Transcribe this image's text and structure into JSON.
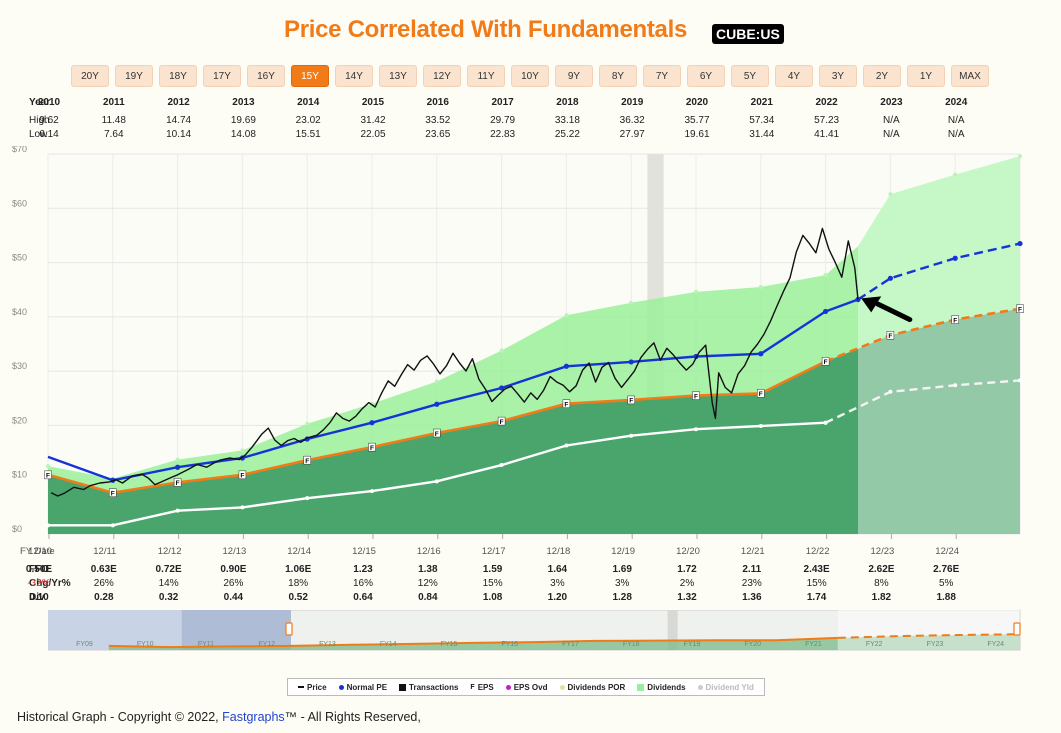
{
  "header": {
    "title": "Price Correlated With Fundamentals",
    "ticker": "CUBE:US"
  },
  "ranges": {
    "buttons": [
      "20Y",
      "19Y",
      "18Y",
      "17Y",
      "16Y",
      "15Y",
      "14Y",
      "13Y",
      "12Y",
      "11Y",
      "10Y",
      "9Y",
      "8Y",
      "7Y",
      "6Y",
      "5Y",
      "4Y",
      "3Y",
      "2Y",
      "1Y",
      "MAX"
    ],
    "active": "15Y"
  },
  "high_low": {
    "year_label": "Year",
    "high_label": "High",
    "low_label": "Low",
    "years": [
      "2010",
      "2011",
      "2012",
      "2013",
      "2014",
      "2015",
      "2016",
      "2017",
      "2018",
      "2019",
      "2020",
      "2021",
      "2022",
      "2023",
      "2024"
    ],
    "high": [
      "9.62",
      "11.48",
      "14.74",
      "19.69",
      "23.02",
      "31.42",
      "33.52",
      "29.79",
      "33.18",
      "36.32",
      "35.77",
      "57.34",
      "57.23",
      "N/A",
      "N/A"
    ],
    "low": [
      "6.14",
      "7.64",
      "10.14",
      "14.08",
      "15.51",
      "22.05",
      "23.65",
      "22.83",
      "25.22",
      "27.97",
      "19.61",
      "31.44",
      "41.41",
      "N/A",
      "N/A"
    ]
  },
  "fundamentals": {
    "fy_label": "FY Date",
    "ffo_label": "FFO",
    "chg_label": "Chg/Yr%",
    "div_label": "Div",
    "fy_dates": [
      "12/10",
      "12/11",
      "12/12",
      "12/13",
      "12/14",
      "12/15",
      "12/16",
      "12/17",
      "12/18",
      "12/19",
      "12/20",
      "12/21",
      "12/22",
      "12/23",
      "12/24"
    ],
    "ffo": [
      "0.50E",
      "0.63E",
      "0.72E",
      "0.90E",
      "1.06E",
      "1.23",
      "1.38",
      "1.59",
      "1.64",
      "1.69",
      "1.72",
      "2.11",
      "2.43E",
      "2.62E",
      "2.76E"
    ],
    "chg": [
      "-32%",
      "26%",
      "14%",
      "26%",
      "18%",
      "16%",
      "12%",
      "15%",
      "3%",
      "3%",
      "2%",
      "23%",
      "15%",
      "8%",
      "5%"
    ],
    "div": [
      "0.10",
      "0.28",
      "0.32",
      "0.44",
      "0.52",
      "0.64",
      "0.84",
      "1.08",
      "1.20",
      "1.28",
      "1.32",
      "1.36",
      "1.74",
      "1.82",
      "1.88"
    ]
  },
  "chart_data": {
    "type": "line",
    "title": "Price Correlated With Fundamentals",
    "y_axis": {
      "min": 0,
      "max": 70,
      "ticks": [
        "$0",
        "$10",
        "$20",
        "$30",
        "$40",
        "$50",
        "$60",
        "$70"
      ]
    },
    "x_ticks": [
      "12/10",
      "12/11",
      "12/12",
      "12/13",
      "12/14",
      "12/15",
      "12/16",
      "12/17",
      "12/18",
      "12/19",
      "12/20",
      "12/21",
      "12/22",
      "12/23",
      "12/24"
    ],
    "x_range": [
      2009.95,
      2024.95
    ],
    "eps_marker": "F",
    "recession_shade": [
      2019.2,
      2019.45
    ],
    "series": [
      {
        "name": "Price",
        "color": "#111111",
        "points": [
          [
            2010.0,
            7.6
          ],
          [
            2010.1,
            7.0
          ],
          [
            2010.2,
            7.5
          ],
          [
            2010.35,
            8.6
          ],
          [
            2010.5,
            8.2
          ],
          [
            2010.6,
            8.9
          ],
          [
            2010.75,
            9.4
          ],
          [
            2010.9,
            9.6
          ],
          [
            2011.0,
            10.0
          ],
          [
            2011.1,
            9.4
          ],
          [
            2011.25,
            10.7
          ],
          [
            2011.4,
            11.0
          ],
          [
            2011.5,
            10.3
          ],
          [
            2011.6,
            9.1
          ],
          [
            2011.7,
            9.6
          ],
          [
            2011.85,
            10.4
          ],
          [
            2011.95,
            10.9
          ],
          [
            2012.1,
            11.8
          ],
          [
            2012.25,
            12.8
          ],
          [
            2012.4,
            12.3
          ],
          [
            2012.5,
            13.0
          ],
          [
            2012.6,
            13.6
          ],
          [
            2012.75,
            14.0
          ],
          [
            2012.9,
            13.7
          ],
          [
            2013.0,
            14.6
          ],
          [
            2013.1,
            16.0
          ],
          [
            2013.25,
            18.4
          ],
          [
            2013.35,
            19.5
          ],
          [
            2013.45,
            17.3
          ],
          [
            2013.55,
            16.3
          ],
          [
            2013.65,
            17.2
          ],
          [
            2013.75,
            17.6
          ],
          [
            2013.85,
            16.9
          ],
          [
            2013.95,
            17.7
          ],
          [
            2014.1,
            18.2
          ],
          [
            2014.2,
            19.2
          ],
          [
            2014.3,
            20.5
          ],
          [
            2014.4,
            22.3
          ],
          [
            2014.5,
            21.3
          ],
          [
            2014.6,
            20.8
          ],
          [
            2014.7,
            21.7
          ],
          [
            2014.8,
            23.1
          ],
          [
            2014.9,
            24.2
          ],
          [
            2015.0,
            23.4
          ],
          [
            2015.1,
            26.0
          ],
          [
            2015.2,
            28.2
          ],
          [
            2015.3,
            27.2
          ],
          [
            2015.4,
            29.3
          ],
          [
            2015.5,
            31.2
          ],
          [
            2015.6,
            30.2
          ],
          [
            2015.7,
            32.0
          ],
          [
            2015.8,
            32.8
          ],
          [
            2015.9,
            31.3
          ],
          [
            2016.0,
            29.5
          ],
          [
            2016.1,
            31.0
          ],
          [
            2016.2,
            33.3
          ],
          [
            2016.3,
            31.5
          ],
          [
            2016.4,
            30.0
          ],
          [
            2016.5,
            32.3
          ],
          [
            2016.6,
            28.5
          ],
          [
            2016.7,
            26.7
          ],
          [
            2016.8,
            24.4
          ],
          [
            2016.9,
            25.6
          ],
          [
            2017.0,
            26.7
          ],
          [
            2017.1,
            27.2
          ],
          [
            2017.2,
            25.8
          ],
          [
            2017.3,
            24.3
          ],
          [
            2017.4,
            26.0
          ],
          [
            2017.5,
            24.8
          ],
          [
            2017.6,
            26.5
          ],
          [
            2017.7,
            29.0
          ],
          [
            2017.8,
            28.0
          ],
          [
            2017.9,
            27.4
          ],
          [
            2018.0,
            26.2
          ],
          [
            2018.1,
            27.3
          ],
          [
            2018.2,
            30.2
          ],
          [
            2018.3,
            31.5
          ],
          [
            2018.4,
            28.0
          ],
          [
            2018.5,
            30.7
          ],
          [
            2018.6,
            31.6
          ],
          [
            2018.7,
            28.7
          ],
          [
            2018.8,
            27.0
          ],
          [
            2018.9,
            28.5
          ],
          [
            2019.0,
            30.0
          ],
          [
            2019.1,
            32.5
          ],
          [
            2019.2,
            34.0
          ],
          [
            2019.3,
            35.2
          ],
          [
            2019.4,
            32.0
          ],
          [
            2019.5,
            34.2
          ],
          [
            2019.6,
            33.0
          ],
          [
            2019.7,
            31.5
          ],
          [
            2019.8,
            30.2
          ],
          [
            2019.9,
            31.3
          ],
          [
            2020.0,
            33.5
          ],
          [
            2020.1,
            34.8
          ],
          [
            2020.2,
            24.2
          ],
          [
            2020.25,
            21.3
          ],
          [
            2020.3,
            29.7
          ],
          [
            2020.4,
            27.0
          ],
          [
            2020.5,
            26.0
          ],
          [
            2020.6,
            29.5
          ],
          [
            2020.7,
            31.0
          ],
          [
            2020.8,
            33.5
          ],
          [
            2020.9,
            35.0
          ],
          [
            2021.0,
            36.8
          ],
          [
            2021.1,
            39.2
          ],
          [
            2021.2,
            42.0
          ],
          [
            2021.3,
            44.7
          ],
          [
            2021.4,
            47.2
          ],
          [
            2021.5,
            52.0
          ],
          [
            2021.6,
            55.0
          ],
          [
            2021.7,
            53.5
          ],
          [
            2021.8,
            51.8
          ],
          [
            2021.9,
            56.3
          ],
          [
            2022.0,
            52.5
          ],
          [
            2022.1,
            50.0
          ],
          [
            2022.2,
            47.3
          ],
          [
            2022.3,
            54.0
          ],
          [
            2022.4,
            49.0
          ],
          [
            2022.45,
            43.2
          ]
        ]
      },
      {
        "name": "Normal PE",
        "color": "#1533d6",
        "points": [
          [
            2009.95,
            14.2
          ],
          [
            2010.95,
            9.9
          ],
          [
            2011.95,
            12.3
          ],
          [
            2012.95,
            14.0
          ],
          [
            2013.95,
            17.5
          ],
          [
            2014.95,
            20.5
          ],
          [
            2015.95,
            23.9
          ],
          [
            2016.95,
            26.9
          ],
          [
            2017.95,
            30.9
          ],
          [
            2018.95,
            31.7
          ],
          [
            2019.95,
            32.7
          ],
          [
            2020.95,
            33.2
          ],
          [
            2021.95,
            41.0
          ],
          [
            2022.45,
            43.2
          ]
        ],
        "estimate_points": [
          [
            2022.45,
            43.2
          ],
          [
            2022.95,
            47.1
          ],
          [
            2023.95,
            50.8
          ],
          [
            2024.95,
            53.5
          ]
        ]
      },
      {
        "name": "EPS",
        "color": "#f07b18",
        "points": [
          [
            2009.95,
            10.9
          ],
          [
            2010.95,
            7.6
          ],
          [
            2011.95,
            9.5
          ],
          [
            2012.95,
            10.9
          ],
          [
            2013.95,
            13.6
          ],
          [
            2014.95,
            16.0
          ],
          [
            2015.95,
            18.6
          ],
          [
            2016.95,
            20.8
          ],
          [
            2017.95,
            24.0
          ],
          [
            2018.95,
            24.7
          ],
          [
            2019.95,
            25.5
          ],
          [
            2020.95,
            25.9
          ],
          [
            2021.95,
            31.8
          ]
        ],
        "estimate_points": [
          [
            2021.95,
            31.8
          ],
          [
            2022.95,
            36.6
          ],
          [
            2023.95,
            39.5
          ],
          [
            2024.95,
            41.5
          ]
        ]
      },
      {
        "name": "Dividends POR",
        "color": "#ffffff",
        "points": [
          [
            2009.95,
            1.6
          ],
          [
            2010.95,
            1.6
          ],
          [
            2011.95,
            4.3
          ],
          [
            2012.95,
            4.9
          ],
          [
            2013.95,
            6.6
          ],
          [
            2014.95,
            7.9
          ],
          [
            2015.95,
            9.7
          ],
          [
            2016.95,
            12.7
          ],
          [
            2017.95,
            16.3
          ],
          [
            2018.95,
            18.1
          ],
          [
            2019.95,
            19.3
          ],
          [
            2020.95,
            19.9
          ],
          [
            2021.95,
            20.5
          ]
        ],
        "estimate_points": [
          [
            2021.95,
            20.5
          ],
          [
            2022.95,
            26.2
          ],
          [
            2023.95,
            27.4
          ],
          [
            2024.95,
            28.3
          ]
        ]
      },
      {
        "name": "Dividends",
        "color": "#9af09a",
        "points": [
          [
            2009.95,
            12.5
          ],
          [
            2010.95,
            10.2
          ],
          [
            2011.95,
            13.7
          ],
          [
            2012.95,
            15.4
          ],
          [
            2013.95,
            20.3
          ],
          [
            2014.95,
            24.0
          ],
          [
            2015.95,
            28.1
          ],
          [
            2016.95,
            33.8
          ],
          [
            2017.95,
            40.3
          ],
          [
            2018.95,
            42.6
          ],
          [
            2019.95,
            44.6
          ],
          [
            2020.95,
            45.5
          ],
          [
            2021.95,
            47.7
          ],
          [
            2022.95,
            62.6
          ],
          [
            2023.95,
            66.2
          ],
          [
            2024.95,
            69.6
          ]
        ]
      }
    ],
    "legend": [
      "Price",
      "Normal PE",
      "Transactions",
      "EPS",
      "EPS Ovd",
      "Dividends POR",
      "Dividends",
      "Dividend Yld"
    ]
  },
  "navigator": {
    "labels": [
      "FY09",
      "FY10",
      "FY11",
      "FY12",
      "FY13",
      "FY14",
      "FY15",
      "FY16",
      "FY17",
      "FY18",
      "FY19",
      "FY20",
      "FY21",
      "FY22",
      "FY23",
      "FY24"
    ]
  },
  "legend": {
    "items": [
      {
        "label": "Price",
        "color": "#111111",
        "kind": "dash"
      },
      {
        "label": "Normal PE",
        "color": "#1533d6",
        "kind": "dot"
      },
      {
        "label": "Transactions",
        "color": "#111111",
        "kind": "square"
      },
      {
        "label": "EPS",
        "color": "#111111",
        "kind": "f"
      },
      {
        "label": "EPS Ovd",
        "color": "#c020c0",
        "kind": "dot"
      },
      {
        "label": "Dividends POR",
        "color": "#e8e0a0",
        "kind": "dot"
      },
      {
        "label": "Dividends",
        "color": "#9af09a",
        "kind": "square"
      },
      {
        "label": "Dividend Yld",
        "color": "#cccccc",
        "kind": "dot",
        "off": true
      }
    ]
  },
  "footer": {
    "prefix": "Historical Graph - Copyright © 2022, ",
    "brand": "Fastgraphs",
    "tm": "™",
    "suffix": " - All Rights Reserved,"
  }
}
